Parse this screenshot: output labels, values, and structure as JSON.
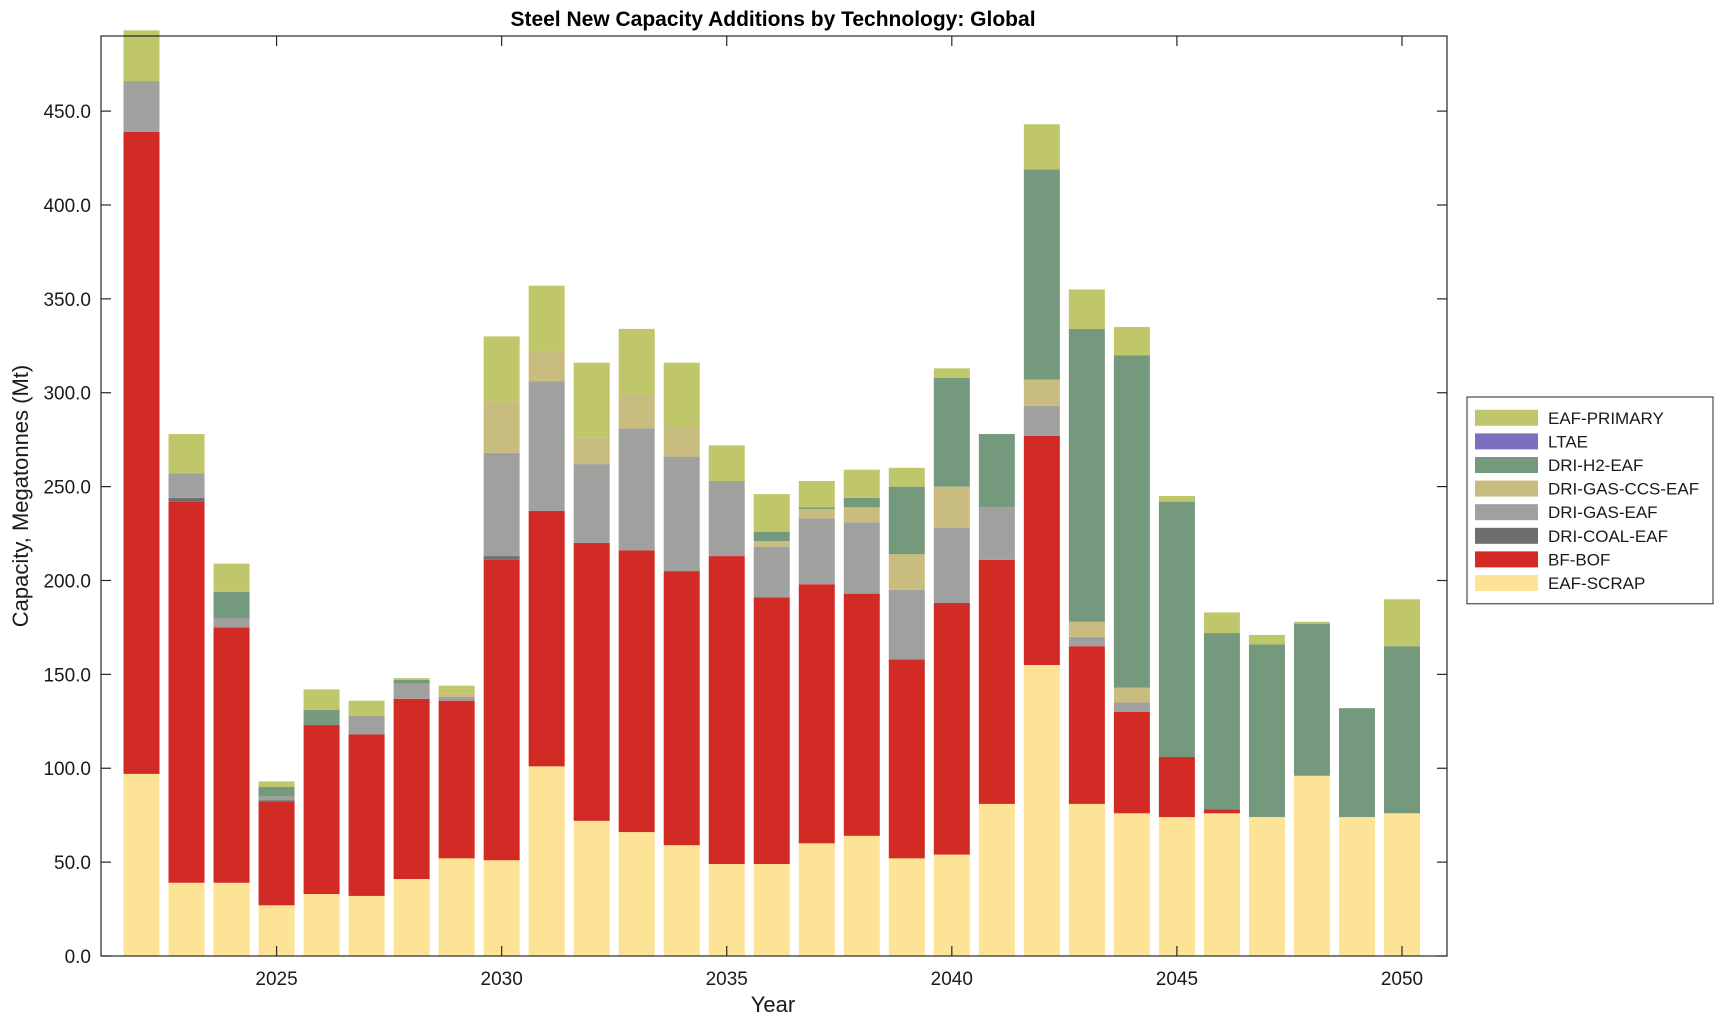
{
  "chart_data": {
    "type": "bar",
    "stacked": true,
    "title": "Steel New Capacity Additions by Technology: Global",
    "xlabel": "Year",
    "ylabel": "Capacity, Megatonnes (Mt)",
    "x": [
      2022,
      2023,
      2024,
      2025,
      2026,
      2027,
      2028,
      2029,
      2030,
      2031,
      2032,
      2033,
      2034,
      2035,
      2036,
      2037,
      2038,
      2039,
      2040,
      2041,
      2042,
      2043,
      2044,
      2045,
      2046,
      2047,
      2048,
      2049,
      2050
    ],
    "xlim": [
      2021.1,
      2051.0
    ],
    "xticks": [
      2025,
      2030,
      2035,
      2040,
      2045,
      2050
    ],
    "xtick_labels": [
      "2025",
      "2030",
      "2035",
      "2040",
      "2045",
      "2050"
    ],
    "ylim": [
      0,
      490
    ],
    "yticks": [
      0,
      50,
      100,
      150,
      200,
      250,
      300,
      350,
      400,
      450
    ],
    "ytick_labels": [
      "0.0",
      "50.0",
      "100.0",
      "150.0",
      "200.0",
      "250.0",
      "300.0",
      "350.0",
      "400.0",
      "450.0"
    ],
    "legend_position": "outside-right",
    "legend_order": [
      "EAF-PRIMARY",
      "LTAE",
      "DRI-H2-EAF",
      "DRI-GAS-CCS-EAF",
      "DRI-GAS-EAF",
      "DRI-COAL-EAF",
      "BF-BOF",
      "EAF-SCRAP"
    ],
    "series": [
      {
        "name": "EAF-SCRAP",
        "color": "#FDE396",
        "values": [
          97,
          39,
          39,
          27,
          33,
          32,
          41,
          52,
          51,
          101,
          72,
          66,
          59,
          49,
          49,
          60,
          64,
          52,
          54,
          81,
          155,
          81,
          76,
          74,
          76,
          74,
          96,
          74,
          76
        ]
      },
      {
        "name": "BF-BOF",
        "color": "#D22B26",
        "values": [
          342,
          203,
          136,
          55,
          90,
          86,
          96,
          84,
          160,
          136,
          148,
          150,
          146,
          164,
          142,
          138,
          129,
          106,
          134,
          130,
          122,
          84,
          54,
          32,
          2,
          0,
          0,
          0,
          0
        ]
      },
      {
        "name": "DRI-COAL-EAF",
        "color": "#6E6E6E",
        "values": [
          0,
          2,
          0,
          1,
          0,
          0,
          0,
          0,
          2,
          0,
          0,
          0,
          0,
          0,
          0,
          0,
          0,
          0,
          0,
          0,
          0,
          0,
          0,
          0,
          0,
          0,
          0,
          0,
          0
        ]
      },
      {
        "name": "DRI-GAS-EAF",
        "color": "#A0A09E",
        "values": [
          27,
          13,
          5,
          2,
          0,
          10,
          8,
          2,
          55,
          69,
          42,
          65,
          61,
          40,
          27,
          35,
          38,
          37,
          40,
          28,
          16,
          5,
          5,
          0,
          0,
          0,
          0,
          0,
          0
        ]
      },
      {
        "name": "DRI-GAS-CCS-EAF",
        "color": "#C8BC7E",
        "values": [
          0,
          0,
          0,
          0,
          0,
          0,
          0,
          2,
          27,
          16,
          14,
          18,
          16,
          0,
          3,
          5,
          8,
          19,
          22,
          0,
          14,
          8,
          8,
          0,
          0,
          0,
          0,
          0,
          0
        ]
      },
      {
        "name": "DRI-H2-EAF",
        "color": "#75997C",
        "values": [
          0,
          0,
          14,
          5,
          8,
          0,
          2,
          0,
          0,
          0,
          0,
          0,
          0,
          0,
          5,
          1,
          5,
          36,
          58,
          39,
          112,
          156,
          177,
          136,
          94,
          92,
          81,
          58,
          89
        ]
      },
      {
        "name": "LTAE",
        "color": "#7B6FC0",
        "values": [
          0,
          0,
          0,
          0,
          0,
          0,
          0,
          0,
          0,
          0,
          0,
          0,
          0,
          0,
          0,
          0,
          0,
          0,
          0,
          0,
          0,
          0,
          0,
          0,
          0,
          0,
          0,
          0,
          0
        ]
      },
      {
        "name": "EAF-PRIMARY",
        "color": "#BFC76A",
        "values": [
          27,
          21,
          15,
          3,
          11,
          8,
          1,
          4,
          35,
          35,
          40,
          35,
          34,
          19,
          20,
          14,
          15,
          10,
          5,
          0,
          24,
          21,
          15,
          3,
          11,
          5,
          1,
          0,
          25
        ]
      }
    ]
  }
}
